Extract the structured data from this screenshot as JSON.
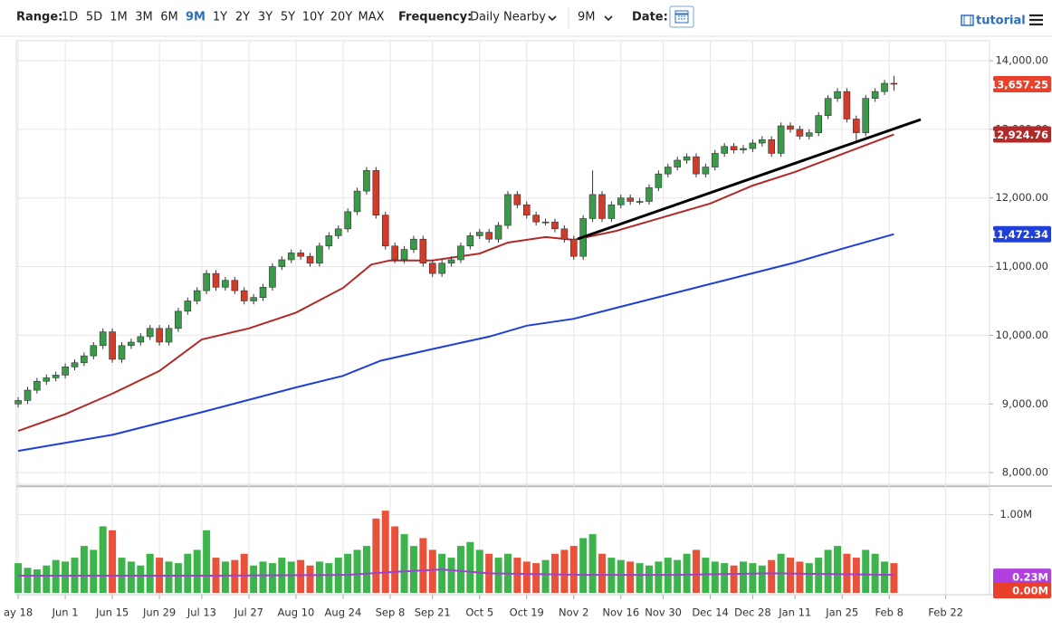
{
  "toolbar": {
    "range_label": "Range:",
    "ranges": [
      "1D",
      "5D",
      "1M",
      "3M",
      "6M",
      "9M",
      "1Y",
      "2Y",
      "3Y",
      "5Y",
      "10Y",
      "20Y",
      "MAX"
    ],
    "active_range": 5,
    "frequency_label": "Frequency:",
    "frequency": "Daily Nearby",
    "period": "9M",
    "date_label": "Date:",
    "tutorial": "tutorial"
  },
  "chart_data": {
    "type": "candlestick",
    "up_color": "#3a9a4a",
    "down_color": "#d03b2a",
    "xlim": [
      -0.4,
      206.3
    ],
    "xticks": [
      {
        "value": 0,
        "label": "ay 18"
      },
      {
        "value": 10,
        "label": "Jun 1"
      },
      {
        "value": 20,
        "label": "Jun 15"
      },
      {
        "value": 30,
        "label": "Jun 29"
      },
      {
        "value": 39,
        "label": "Jul 13"
      },
      {
        "value": 49,
        "label": "Jul 27"
      },
      {
        "value": 59,
        "label": "Aug 10"
      },
      {
        "value": 69,
        "label": "Aug 24"
      },
      {
        "value": 79,
        "label": "Sep 8"
      },
      {
        "value": 88,
        "label": "Sep 21"
      },
      {
        "value": 98,
        "label": "Oct 5"
      },
      {
        "value": 108,
        "label": "Oct 19"
      },
      {
        "value": 118,
        "label": "Nov 2"
      },
      {
        "value": 128,
        "label": "Nov 16"
      },
      {
        "value": 137,
        "label": "Nov 30"
      },
      {
        "value": 147,
        "label": "Dec 14"
      },
      {
        "value": 156,
        "label": "Dec 28"
      },
      {
        "value": 165,
        "label": "Jan 11"
      },
      {
        "value": 175,
        "label": "Jan 25"
      },
      {
        "value": 185,
        "label": "Feb 8"
      },
      {
        "value": 197,
        "label": "Feb 22"
      }
    ],
    "ylim": [
      7830,
      14290
    ],
    "yticks": [
      {
        "value": 8000,
        "label": "8,000.00"
      },
      {
        "value": 9000,
        "label": "9,000.00"
      },
      {
        "value": 10000,
        "label": "10,000.00"
      },
      {
        "value": 11000,
        "label": "11,000.00"
      },
      {
        "value": 12000,
        "label": "12,000.00"
      },
      {
        "value": 13000,
        "label": "13,000.00"
      },
      {
        "value": 14000,
        "label": "14,000.00"
      }
    ],
    "grid": true,
    "x": [
      0,
      2,
      4,
      6,
      8,
      10,
      12,
      14,
      16,
      18,
      20,
      22,
      24,
      26,
      28,
      30,
      32,
      34,
      36,
      38,
      40,
      42,
      44,
      46,
      48,
      50,
      52,
      54,
      56,
      58,
      60,
      62,
      64,
      66,
      68,
      70,
      72,
      74,
      76,
      78,
      80,
      82,
      84,
      86,
      88,
      90,
      92,
      94,
      96,
      98,
      100,
      102,
      104,
      106,
      108,
      110,
      112,
      114,
      116,
      118,
      120,
      122,
      124,
      126,
      128,
      130,
      132,
      134,
      136,
      138,
      140,
      142,
      144,
      146,
      148,
      150,
      152,
      154,
      156,
      158,
      160,
      162,
      164,
      166,
      168,
      170,
      172,
      174,
      176,
      178,
      180,
      182,
      184,
      186
    ],
    "candles": [
      [
        9000,
        9100,
        8950,
        9050
      ],
      [
        9050,
        9250,
        9000,
        9200
      ],
      [
        9200,
        9380,
        9150,
        9330
      ],
      [
        9330,
        9430,
        9280,
        9380
      ],
      [
        9380,
        9470,
        9330,
        9420
      ],
      [
        9420,
        9590,
        9370,
        9540
      ],
      [
        9540,
        9650,
        9490,
        9600
      ],
      [
        9600,
        9750,
        9550,
        9700
      ],
      [
        9700,
        9900,
        9650,
        9850
      ],
      [
        9850,
        10100,
        9800,
        10050
      ],
      [
        10050,
        10100,
        9600,
        9650
      ],
      [
        9650,
        9900,
        9600,
        9850
      ],
      [
        9850,
        9950,
        9800,
        9900
      ],
      [
        9900,
        10030,
        9850,
        9980
      ],
      [
        9980,
        10150,
        9930,
        10100
      ],
      [
        10100,
        10150,
        9850,
        9900
      ],
      [
        9900,
        10150,
        9850,
        10100
      ],
      [
        10100,
        10400,
        10050,
        10350
      ],
      [
        10350,
        10550,
        10300,
        10500
      ],
      [
        10500,
        10700,
        10450,
        10650
      ],
      [
        10650,
        10950,
        10600,
        10900
      ],
      [
        10900,
        10950,
        10650,
        10700
      ],
      [
        10700,
        10850,
        10650,
        10800
      ],
      [
        10800,
        10850,
        10600,
        10650
      ],
      [
        10650,
        10700,
        10450,
        10500
      ],
      [
        10500,
        10600,
        10450,
        10550
      ],
      [
        10550,
        10750,
        10500,
        10700
      ],
      [
        10700,
        11050,
        10650,
        11000
      ],
      [
        11000,
        11150,
        10950,
        11100
      ],
      [
        11100,
        11250,
        11050,
        11200
      ],
      [
        11200,
        11250,
        11100,
        11150
      ],
      [
        11150,
        11200,
        11000,
        11050
      ],
      [
        11050,
        11350,
        11000,
        11300
      ],
      [
        11300,
        11500,
        11250,
        11450
      ],
      [
        11450,
        11600,
        11400,
        11550
      ],
      [
        11550,
        11850,
        11500,
        11800
      ],
      [
        11800,
        12150,
        11750,
        12100
      ],
      [
        12100,
        12450,
        12050,
        12400
      ],
      [
        12400,
        12450,
        11700,
        11750
      ],
      [
        11750,
        11800,
        11250,
        11300
      ],
      [
        11300,
        11350,
        11050,
        11100
      ],
      [
        11100,
        11300,
        11050,
        11250
      ],
      [
        11250,
        11450,
        11200,
        11400
      ],
      [
        11400,
        11450,
        11000,
        11050
      ],
      [
        11050,
        11100,
        10850,
        10900
      ],
      [
        10900,
        11100,
        10850,
        11050
      ],
      [
        11050,
        11150,
        11000,
        11100
      ],
      [
        11100,
        11350,
        11050,
        11300
      ],
      [
        11300,
        11500,
        11250,
        11450
      ],
      [
        11450,
        11550,
        11400,
        11500
      ],
      [
        11500,
        11550,
        11350,
        11400
      ],
      [
        11400,
        11650,
        11350,
        11600
      ],
      [
        11600,
        12100,
        11550,
        12050
      ],
      [
        12050,
        12100,
        11850,
        11900
      ],
      [
        11900,
        11950,
        11700,
        11750
      ],
      [
        11750,
        11800,
        11600,
        11650
      ],
      [
        11650,
        11700,
        11600,
        11650
      ],
      [
        11650,
        11700,
        11500,
        11550
      ],
      [
        11550,
        11600,
        11350,
        11400
      ],
      [
        11400,
        11450,
        11100,
        11150
      ],
      [
        11150,
        11750,
        11100,
        11700
      ],
      [
        11700,
        12400,
        11650,
        12050
      ],
      [
        12050,
        12100,
        11650,
        11700
      ],
      [
        11700,
        11950,
        11650,
        11900
      ],
      [
        11900,
        12050,
        11850,
        12000
      ],
      [
        12000,
        12050,
        11900,
        11950
      ],
      [
        11950,
        12000,
        11900,
        11950
      ],
      [
        11950,
        12200,
        11900,
        12150
      ],
      [
        12150,
        12400,
        12100,
        12350
      ],
      [
        12350,
        12500,
        12300,
        12450
      ],
      [
        12450,
        12600,
        12400,
        12550
      ],
      [
        12550,
        12650,
        12500,
        12600
      ],
      [
        12600,
        12650,
        12300,
        12350
      ],
      [
        12350,
        12500,
        12300,
        12450
      ],
      [
        12450,
        12700,
        12400,
        12650
      ],
      [
        12650,
        12800,
        12600,
        12750
      ],
      [
        12750,
        12800,
        12650,
        12700
      ],
      [
        12700,
        12770,
        12650,
        12720
      ],
      [
        12720,
        12850,
        12670,
        12800
      ],
      [
        12800,
        12900,
        12750,
        12850
      ],
      [
        12850,
        12900,
        12600,
        12650
      ],
      [
        12650,
        13100,
        12600,
        13050
      ],
      [
        13050,
        13100,
        12950,
        13000
      ],
      [
        13000,
        13050,
        12850,
        12900
      ],
      [
        12900,
        13000,
        12850,
        12950
      ],
      [
        12950,
        13250,
        12900,
        13200
      ],
      [
        13200,
        13500,
        13150,
        13450
      ],
      [
        13450,
        13600,
        13400,
        13550
      ],
      [
        13550,
        13600,
        13100,
        13150
      ],
      [
        13150,
        13200,
        12800,
        12950
      ],
      [
        12950,
        13500,
        12900,
        13450
      ],
      [
        13450,
        13600,
        13400,
        13550
      ],
      [
        13550,
        13720,
        13500,
        13670
      ],
      [
        13670,
        13780,
        13560,
        13657.25
      ]
    ],
    "last_label": {
      "value": 13657.25,
      "label": "13,657.25",
      "color": "#e8402a"
    },
    "series": [
      {
        "color": "#b02a2a",
        "x": [
          0,
          10,
          20,
          30,
          39,
          49,
          59,
          69,
          75,
          79,
          88,
          98,
          104,
          112,
          118,
          127,
          137,
          147,
          156,
          165,
          175,
          186
        ],
        "values": [
          8606,
          8850,
          9150,
          9480,
          9940,
          10100,
          10330,
          10690,
          11030,
          11090,
          11090,
          11190,
          11350,
          11430,
          11390,
          11520,
          11720,
          11920,
          12180,
          12380,
          12640,
          12924.76
        ],
        "last_label": {
          "value": 12924.76,
          "label": "12,924.76",
          "color": "#b02a2a"
        }
      },
      {
        "color": "#1f3fd6",
        "x": [
          0,
          20,
          39,
          59,
          69,
          77,
          88,
          100,
          108,
          118,
          127,
          146,
          165,
          175,
          186
        ],
        "values": [
          8316,
          8550,
          8880,
          9240,
          9410,
          9630,
          9800,
          9980,
          10140,
          10240,
          10400,
          10730,
          11060,
          11260,
          11472.34
        ],
        "last_label": {
          "value": 11472.34,
          "label": "11,472.34",
          "color": "#1f3fd6"
        }
      }
    ],
    "volume": {
      "ylim": [
        0,
        1.33
      ],
      "yticks": [
        {
          "value": 1,
          "label": "1.00M"
        }
      ],
      "up_color": "#3cb44b",
      "down_color": "#e8523a",
      "values": [
        0.38,
        0.32,
        0.3,
        0.35,
        0.42,
        0.4,
        0.45,
        0.6,
        0.55,
        0.85,
        0.8,
        0.45,
        0.4,
        0.35,
        0.5,
        0.45,
        0.4,
        0.38,
        0.5,
        0.55,
        0.8,
        0.45,
        0.4,
        0.42,
        0.5,
        0.35,
        0.4,
        0.38,
        0.45,
        0.4,
        0.42,
        0.35,
        0.4,
        0.38,
        0.45,
        0.5,
        0.55,
        0.6,
        0.95,
        1.05,
        0.85,
        0.75,
        0.6,
        0.7,
        0.55,
        0.5,
        0.45,
        0.6,
        0.65,
        0.55,
        0.5,
        0.45,
        0.5,
        0.45,
        0.4,
        0.38,
        0.42,
        0.5,
        0.55,
        0.6,
        0.7,
        0.75,
        0.5,
        0.45,
        0.42,
        0.4,
        0.38,
        0.35,
        0.4,
        0.45,
        0.42,
        0.5,
        0.55,
        0.45,
        0.4,
        0.38,
        0.35,
        0.4,
        0.38,
        0.35,
        0.42,
        0.5,
        0.45,
        0.4,
        0.38,
        0.45,
        0.55,
        0.6,
        0.5,
        0.45,
        0.55,
        0.5,
        0.4,
        0.38
      ],
      "last_label": {
        "value": 0,
        "label": "0.00M",
        "color": "#e8402a"
      },
      "ma": {
        "color": "#a040d0",
        "x": [
          0,
          40,
          70,
          80,
          90,
          100,
          120,
          140,
          160,
          186
        ],
        "values": [
          0.22,
          0.22,
          0.23,
          0.27,
          0.3,
          0.25,
          0.23,
          0.23,
          0.25,
          0.23
        ],
        "last_label": {
          "value": 0.23,
          "label": "0.23M",
          "color": "#b040e0"
        }
      }
    }
  }
}
